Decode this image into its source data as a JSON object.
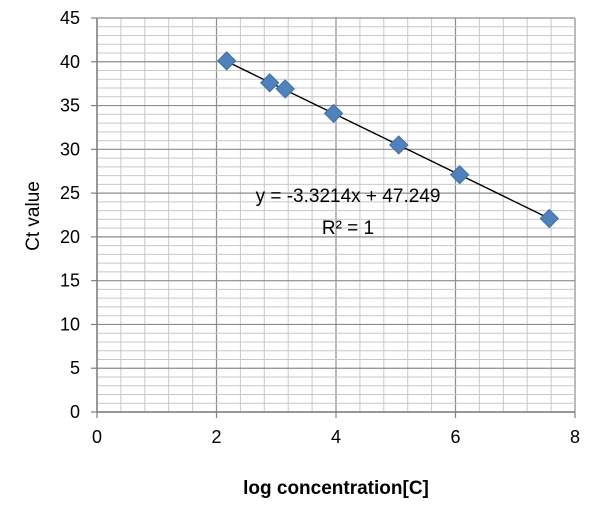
{
  "chart_data": {
    "type": "scatter",
    "xlabel": "log concentration[C]",
    "ylabel": "Ct value",
    "xlim": [
      0,
      8
    ],
    "ylim": [
      0,
      45
    ],
    "x_ticks": [
      "0",
      "2",
      "4",
      "6",
      "8"
    ],
    "y_ticks": [
      "0",
      "5",
      "10",
      "15",
      "20",
      "25",
      "30",
      "35",
      "40",
      "45"
    ],
    "grid": true,
    "marker_color": "#4f81bd",
    "points": [
      {
        "x": 2.17,
        "y": 40.1
      },
      {
        "x": 2.89,
        "y": 37.6
      },
      {
        "x": 3.15,
        "y": 36.9
      },
      {
        "x": 3.96,
        "y": 34.1
      },
      {
        "x": 5.05,
        "y": 30.5
      },
      {
        "x": 6.07,
        "y": 27.1
      },
      {
        "x": 7.57,
        "y": 22.1
      }
    ],
    "trendline": {
      "slope": -3.3214,
      "intercept": 47.249,
      "x_range": [
        2.17,
        7.57
      ],
      "color": "#000000"
    },
    "annotations": {
      "equation": "y = -3.3214x + 47.249",
      "r_squared": "R² = 1"
    }
  }
}
